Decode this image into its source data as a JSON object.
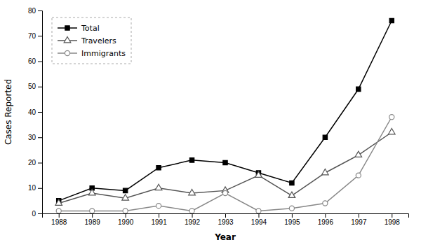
{
  "chart_data": {
    "type": "line",
    "xlabel": "Year",
    "ylabel": "Cases Reported",
    "x": [
      1988,
      1989,
      1990,
      1991,
      1992,
      1993,
      1994,
      1995,
      1996,
      1997,
      1998
    ],
    "xlim": [
      1987.5,
      1998.5
    ],
    "xticks": [
      1988,
      1989,
      1990,
      1991,
      1992,
      1993,
      1994,
      1995,
      1996,
      1997,
      1998
    ],
    "ylim": [
      0,
      80
    ],
    "yticks": [
      0,
      10,
      20,
      30,
      40,
      50,
      60,
      70,
      80
    ],
    "grid": false,
    "legend": "upper left",
    "series": [
      {
        "name": "Total",
        "color": "#000000",
        "marker": "square",
        "values": [
          5,
          10,
          9,
          18,
          21,
          20,
          16,
          12,
          30,
          49,
          76
        ]
      },
      {
        "name": "Travelers",
        "color": "#555555",
        "marker": "triangle-open",
        "values": [
          4,
          8,
          6,
          10,
          8,
          9,
          15,
          7,
          16,
          23,
          32
        ]
      },
      {
        "name": "Immigrants",
        "color": "#888888",
        "marker": "circle-open",
        "values": [
          1,
          1,
          1,
          3,
          1,
          8,
          1,
          2,
          4,
          15,
          38
        ]
      }
    ]
  }
}
